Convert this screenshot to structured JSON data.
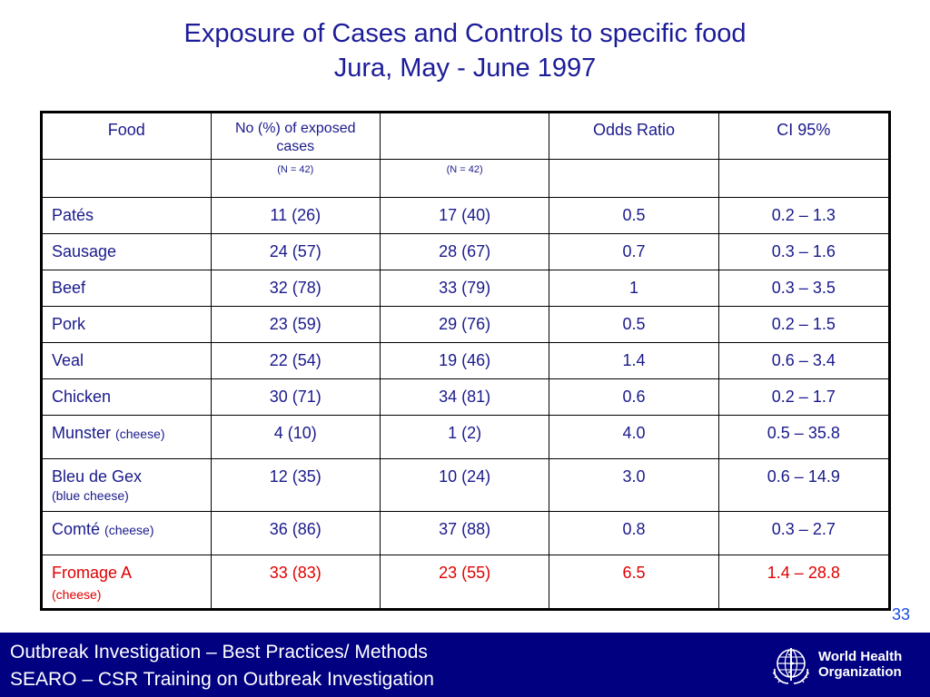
{
  "slide": {
    "title_line1": "Exposure of Cases and Controls to specific food",
    "title_line2": "Jura, May - June 1997",
    "page_number": "33"
  },
  "table": {
    "headers": {
      "food": "Food",
      "exposed_cases": "No (%) of exposed cases",
      "controls": "",
      "odds_ratio": "Odds Ratio",
      "ci": "CI 95%"
    },
    "subheaders": {
      "cases_n": "(N = 42)",
      "controls_n": "(N = 42)"
    },
    "rows": [
      {
        "food": "Patés",
        "note": "",
        "cases": "11 (26)",
        "controls": "17 (40)",
        "or": "0.5",
        "ci": "0.2 – 1.3"
      },
      {
        "food": "Sausage",
        "note": "",
        "cases": "24 (57)",
        "controls": "28 (67)",
        "or": "0.7",
        "ci": "0.3 – 1.6"
      },
      {
        "food": "Beef",
        "note": "",
        "cases": "32 (78)",
        "controls": "33 (79)",
        "or": "1",
        "ci": "0.3 – 3.5"
      },
      {
        "food": "Pork",
        "note": "",
        "cases": "23 (59)",
        "controls": "29 (76)",
        "or": "0.5",
        "ci": "0.2 – 1.5"
      },
      {
        "food": "Veal",
        "note": "",
        "cases": "22 (54)",
        "controls": "19 (46)",
        "or": "1.4",
        "ci": "0.6 – 3.4"
      },
      {
        "food": "Chicken",
        "note": "",
        "cases": "30 (71)",
        "controls": "34 (81)",
        "or": "0.6",
        "ci": "0.2 – 1.7"
      },
      {
        "food": "Munster",
        "note": "(cheese)",
        "cases": "4 (10)",
        "controls": "1 (2)",
        "or": "4.0",
        "ci": "0.5 – 35.8"
      },
      {
        "food": "Bleu de Gex",
        "note": "(blue cheese)",
        "cases": "12 (35)",
        "controls": "10 (24)",
        "or": "3.0",
        "ci": "0.6 – 14.9"
      },
      {
        "food": "Comté",
        "note": "(cheese)",
        "cases": "36 (86)",
        "controls": "37 (88)",
        "or": "0.8",
        "ci": "0.3 – 2.7"
      },
      {
        "food": "Fromage A",
        "note": "(cheese)",
        "cases": "33 (83)",
        "controls": "23 (55)",
        "or": "6.5",
        "ci": "1.4 – 28.8"
      }
    ]
  },
  "footer": {
    "line1": "Outbreak Investigation – Best Practices/ Methods",
    "line2": "SEARO – CSR Training on Outbreak Investigation",
    "logo_line1": "World Health",
    "logo_line2": "Organization",
    "logo_icon": "who-emblem-icon"
  },
  "colors": {
    "title": "#1c1c9a",
    "table_text": "#1a1a8c",
    "highlight": "#e00000",
    "footer_bg": "#000080",
    "page_number": "#1a4ee0"
  }
}
